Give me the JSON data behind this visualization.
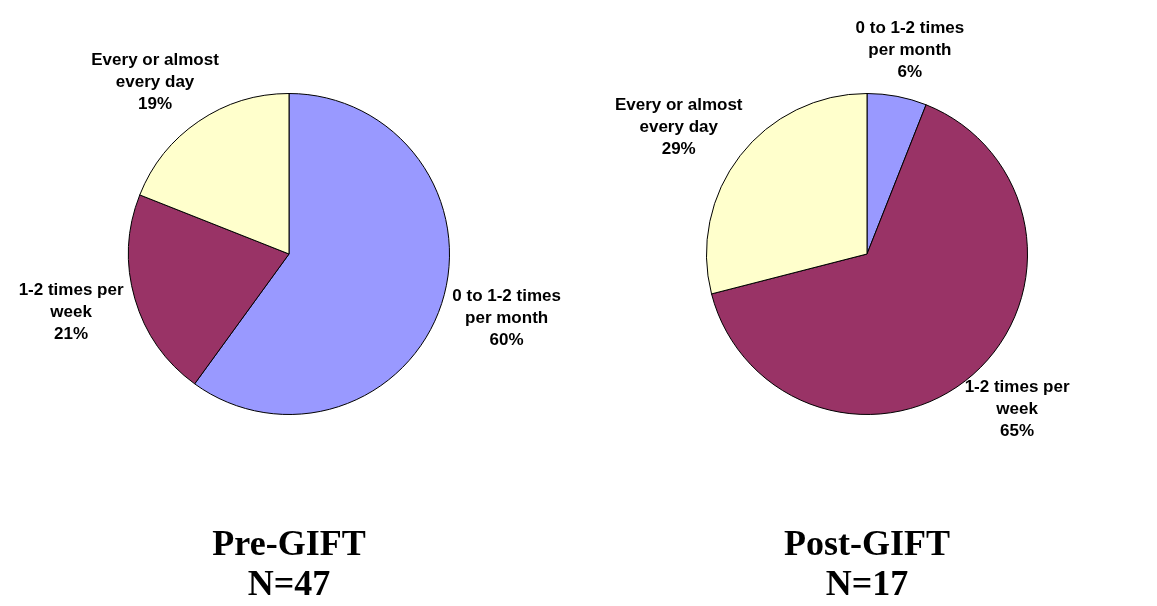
{
  "chart_data": [
    {
      "type": "pie",
      "title": "Pre-GIFT",
      "subtitle": "N=47",
      "categories": [
        "0 to 1-2 times per month",
        "1-2 times per week",
        "Every or almost every day"
      ],
      "values": [
        60,
        21,
        19
      ],
      "value_labels": [
        "60%",
        "21%",
        "19%"
      ],
      "colors": [
        "#9999ff",
        "#993366",
        "#ffffcc"
      ]
    },
    {
      "type": "pie",
      "title": "Post-GIFT",
      "subtitle": "N=17",
      "categories": [
        "0 to 1-2 times per month",
        "1-2 times per week",
        "Every or almost every day"
      ],
      "values": [
        6,
        65,
        29
      ],
      "value_labels": [
        "6%",
        "65%",
        "29%"
      ],
      "colors": [
        "#9999ff",
        "#993366",
        "#ffffcc"
      ]
    }
  ]
}
